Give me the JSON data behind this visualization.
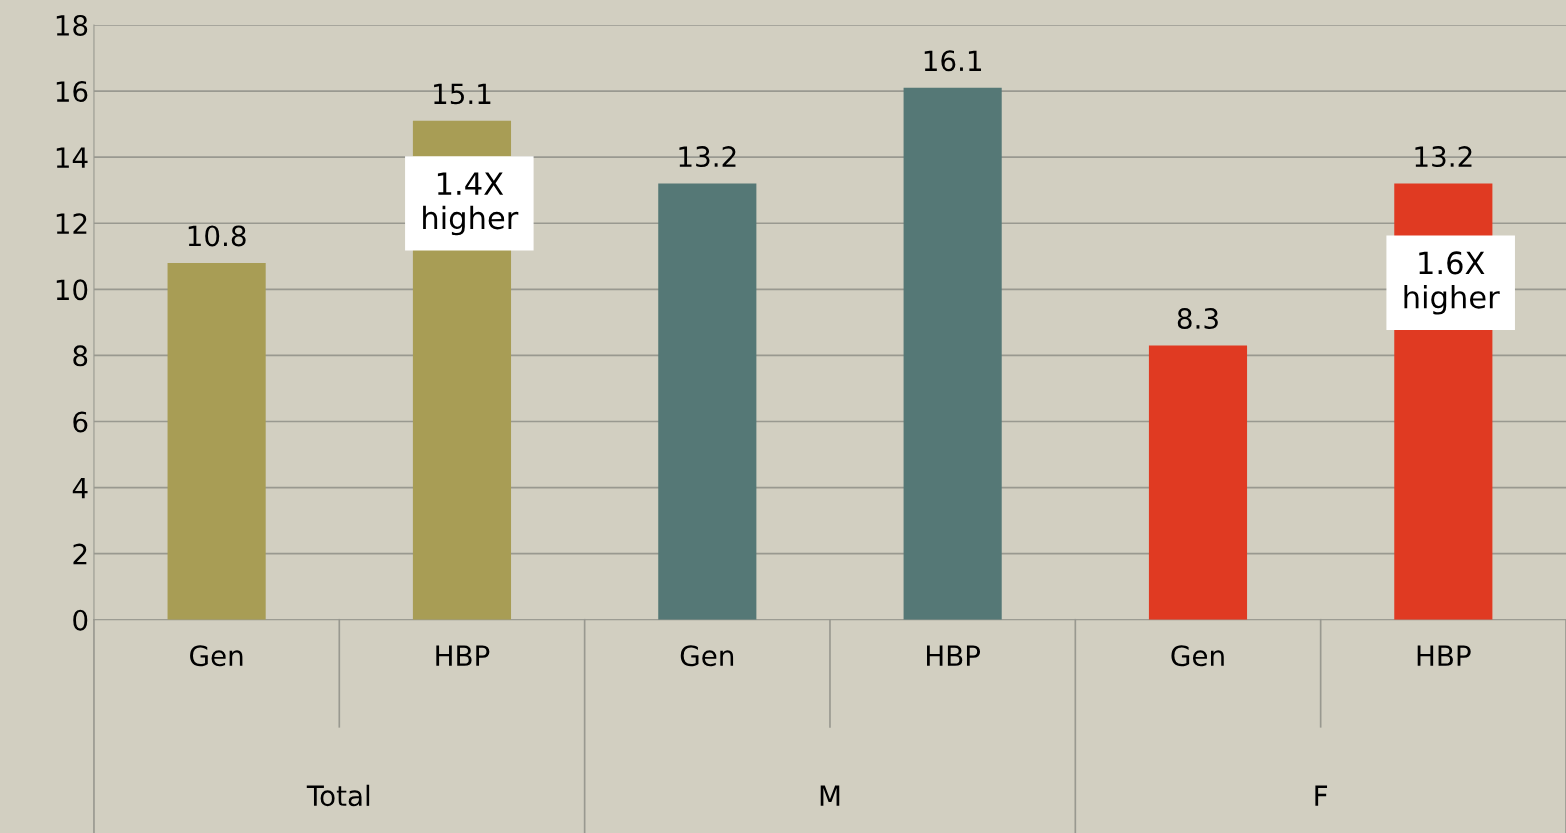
{
  "chart_data": {
    "type": "bar",
    "categories": [
      "Gen",
      "HBP",
      "Gen",
      "HBP",
      "Gen",
      "HBP"
    ],
    "values": [
      10.8,
      15.1,
      13.2,
      16.1,
      8.3,
      13.2
    ],
    "colors": [
      "#a89d55",
      "#a89d55",
      "#557876",
      "#557876",
      "#e03a22",
      "#e03a22"
    ],
    "ylim": [
      0,
      18
    ],
    "yticks": [
      0,
      2,
      4,
      6,
      8,
      10,
      12,
      14,
      16,
      18
    ],
    "grid": "y",
    "data_labels": true,
    "legend": false,
    "annotations": [
      "1.4X higher",
      "1.6X higher",
      "Total",
      "M",
      "F"
    ]
  }
}
